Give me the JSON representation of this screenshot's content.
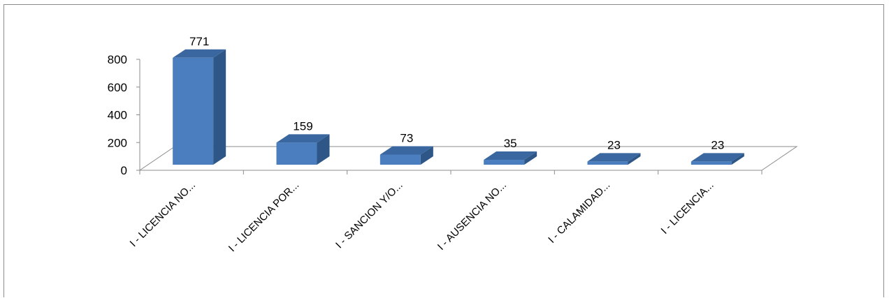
{
  "chart_data": {
    "type": "bar",
    "style": "3d-column",
    "categories": [
      "I - LICENCIA NO...",
      "I - LICENCIA POR...",
      "I - SANCION Y/O...",
      "I - AUSENCIA NO...",
      "I - CALAMIDAD...",
      "I - LICENCIA..."
    ],
    "values": [
      771,
      159,
      73,
      35,
      23,
      23
    ],
    "ylim": [
      0,
      800
    ],
    "yticks": [
      0,
      200,
      400,
      600,
      800
    ],
    "ytick_labels": [
      "0",
      "200",
      "400",
      "600",
      "800"
    ],
    "title": "",
    "xlabel": "",
    "ylabel": "",
    "legend": "none",
    "grid": false,
    "colors": {
      "bar_front": "#4a7ebf",
      "bar_side": "#2e5687",
      "bar_top": "#3a679f",
      "floor_line": "#8c8c8c",
      "axis_line": "#8c8c8c"
    }
  }
}
